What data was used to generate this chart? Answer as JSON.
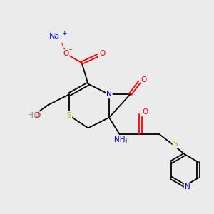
{
  "bg_color": "#ebebeb",
  "atom_colors": {
    "C": "#000000",
    "N": "#0000ff",
    "O": "#ff0000",
    "S": "#ccaa00",
    "Na": "#0000ff",
    "H": "#808080"
  }
}
